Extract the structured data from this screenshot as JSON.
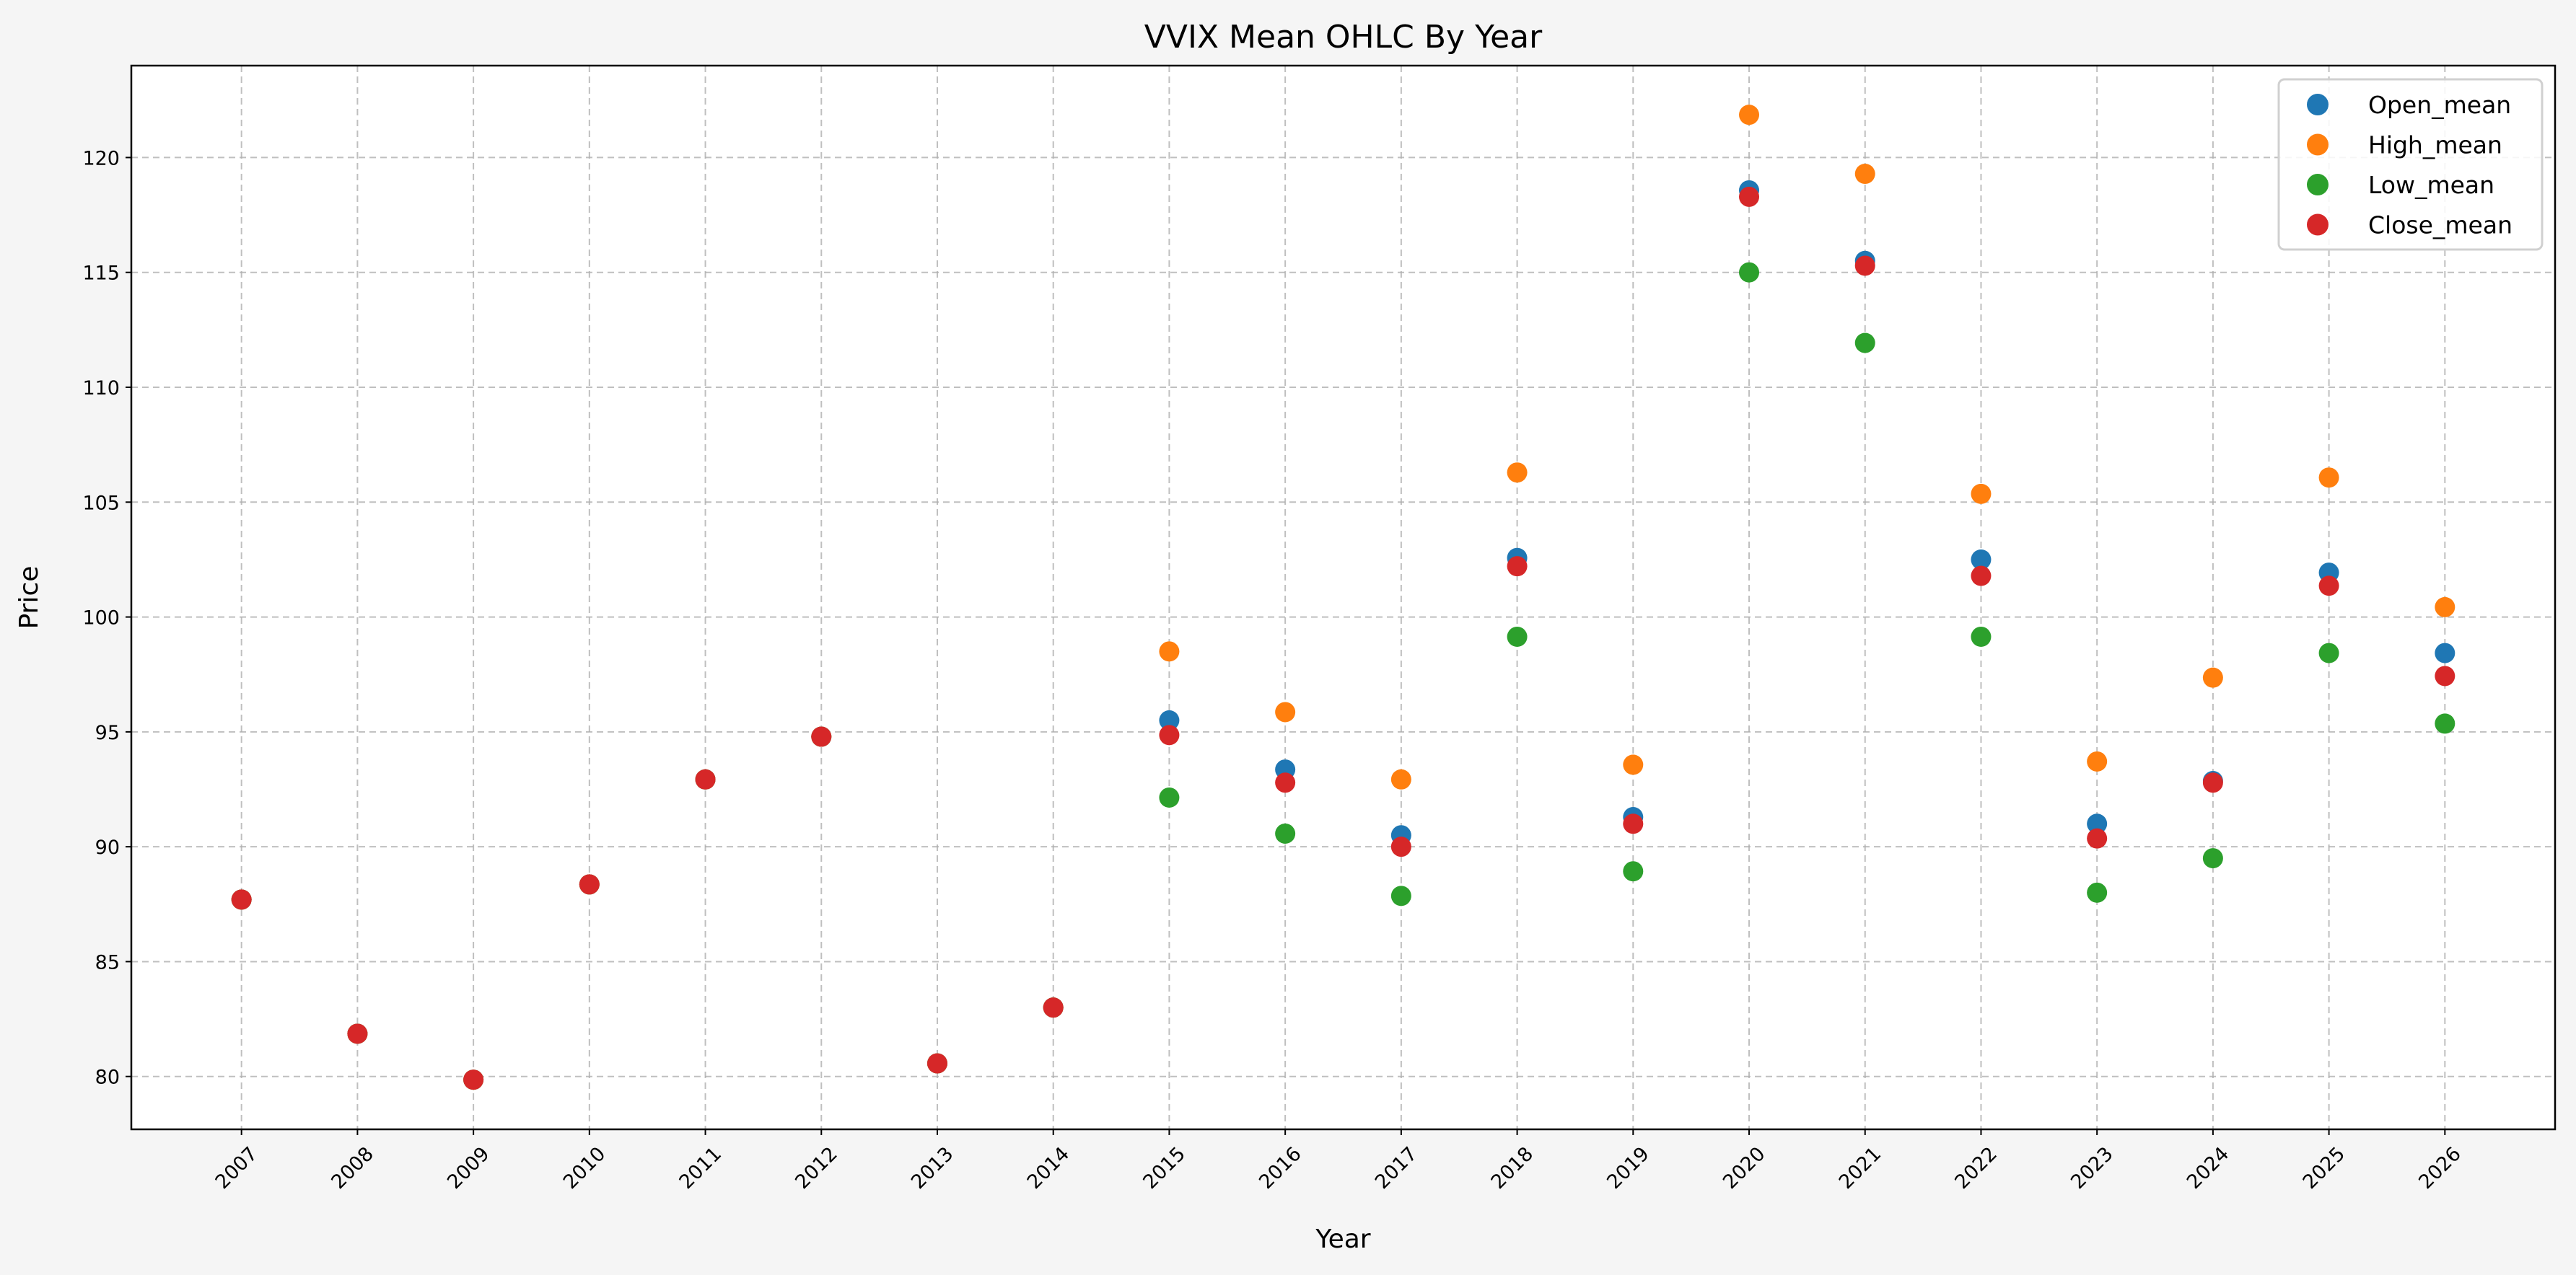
{
  "chart_data": {
    "type": "scatter",
    "title": "VVIX Mean OHLC By Year",
    "xlabel": "Year",
    "ylabel": "Price",
    "xlim": [
      2006.05,
      2026.95
    ],
    "ylim": [
      77.7,
      124.0
    ],
    "x_ticks": [
      2007,
      2008,
      2009,
      2010,
      2011,
      2012,
      2013,
      2014,
      2015,
      2016,
      2017,
      2018,
      2019,
      2020,
      2021,
      2022,
      2023,
      2024,
      2025,
      2026
    ],
    "y_ticks": [
      80,
      85,
      90,
      95,
      100,
      105,
      110,
      115,
      120
    ],
    "grid": true,
    "legend_position": "top-right",
    "x": [
      2007,
      2008,
      2009,
      2010,
      2011,
      2012,
      2013,
      2014,
      2015,
      2016,
      2017,
      2018,
      2019,
      2020,
      2021,
      2022,
      2023,
      2024,
      2025,
      2026
    ],
    "series": [
      {
        "name": "Open_mean",
        "color": "#1f77b4",
        "values": [
          87.7,
          81.86,
          79.86,
          88.36,
          92.93,
          94.79,
          80.57,
          83.0,
          95.5,
          93.36,
          90.5,
          102.57,
          91.29,
          118.57,
          115.5,
          102.5,
          91.0,
          92.86,
          101.93,
          98.43
        ]
      },
      {
        "name": "High_mean",
        "color": "#ff7f0e",
        "values": [
          87.7,
          81.86,
          79.86,
          88.36,
          92.93,
          94.79,
          80.57,
          83.0,
          98.5,
          95.86,
          92.93,
          106.29,
          93.57,
          121.86,
          119.29,
          105.36,
          93.71,
          97.36,
          106.07,
          100.43
        ]
      },
      {
        "name": "Low_mean",
        "color": "#2ca02c",
        "values": [
          87.7,
          81.86,
          79.86,
          88.36,
          92.93,
          94.79,
          80.57,
          83.0,
          92.14,
          90.57,
          87.86,
          99.14,
          88.93,
          115.0,
          111.93,
          99.14,
          88.0,
          89.5,
          98.43,
          95.36
        ]
      },
      {
        "name": "Close_mean",
        "color": "#d62728",
        "values": [
          87.7,
          81.86,
          79.86,
          88.36,
          92.93,
          94.79,
          80.57,
          83.0,
          94.86,
          92.79,
          90.0,
          102.21,
          91.0,
          118.29,
          115.29,
          101.79,
          90.36,
          92.79,
          101.36,
          97.43
        ]
      }
    ]
  }
}
